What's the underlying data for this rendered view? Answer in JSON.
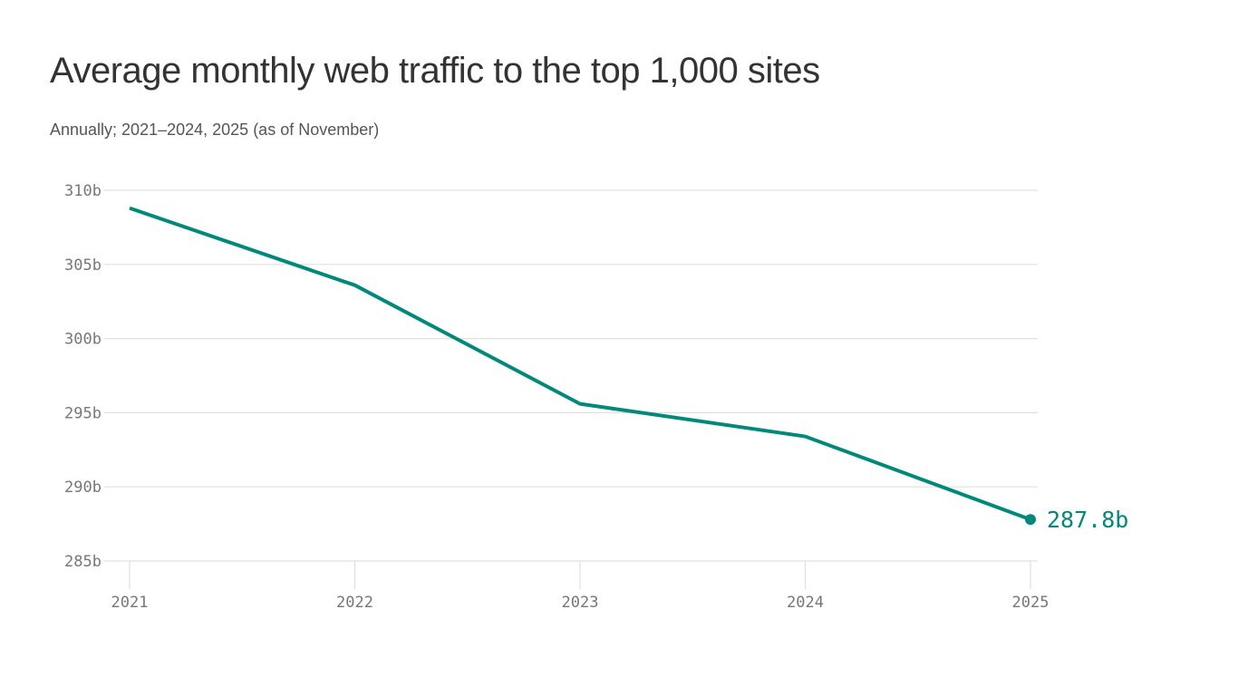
{
  "chart_data": {
    "type": "line",
    "title": "Average monthly web traffic to the top 1,000 sites",
    "subtitle": "Annually; 2021–2024, 2025 (as of November)",
    "x": [
      "2021",
      "2022",
      "2023",
      "2024",
      "2025"
    ],
    "series": [
      {
        "values": [
          308.8,
          303.6,
          295.6,
          293.4,
          287.8
        ]
      }
    ],
    "yticks": [
      285,
      290,
      295,
      300,
      305,
      310
    ],
    "ytick_labels": [
      "285b",
      "290b",
      "295b",
      "300b",
      "305b",
      "310b"
    ],
    "ylim": [
      285,
      310
    ],
    "grid": true,
    "end_label": "287.8b",
    "colors": {
      "line": "#00897b",
      "grid": "#e0e0e0",
      "tick_text": "#777777"
    }
  }
}
